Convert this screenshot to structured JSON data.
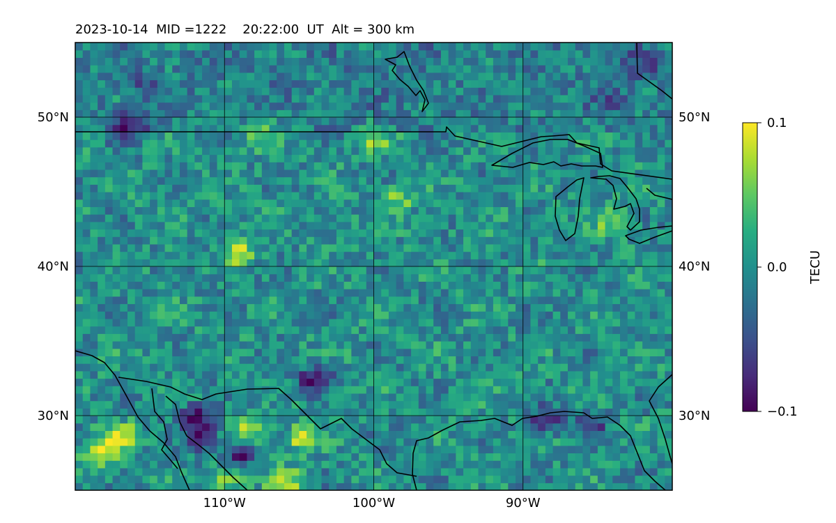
{
  "chart_data": {
    "type": "heatmap",
    "title": "2023-10-14  MID =1222    20:22:00  UT  Alt = 300 km",
    "map": {
      "lon_range": [
        -120,
        -80
      ],
      "lat_range": [
        25,
        55
      ],
      "projection": "equirectangular",
      "gridlines": true,
      "lon_ticks": [
        -110,
        -100,
        -90
      ],
      "lon_tick_labels": [
        "110°W",
        "100°W",
        "90°W"
      ],
      "lat_ticks": [
        30,
        40,
        50
      ],
      "lat_tick_labels": [
        "30°N",
        "40°N",
        "50°N"
      ],
      "coastlines_and_borders": true
    },
    "colorbar": {
      "label": "TECU",
      "colormap": "viridis",
      "vmin": -0.1,
      "vmax": 0.1,
      "ticks": [
        0.1,
        0.0,
        -0.1
      ],
      "tick_labels": [
        "0.1",
        "0.0",
        "−0.1"
      ]
    },
    "field": {
      "description_values": "differential TEC over continental US, mostly near 0.0 TECU",
      "background_level": 0.0,
      "anomalies": [
        {
          "lon": -118.5,
          "lat": 27.5,
          "value": 0.1
        },
        {
          "lon": -117.0,
          "lat": 28.5,
          "value": 0.1
        },
        {
          "lon": -106.0,
          "lat": 25.5,
          "value": 0.09
        },
        {
          "lon": -110.0,
          "lat": 25.8,
          "value": 0.08
        },
        {
          "lon": -109.0,
          "lat": 41.0,
          "value": 0.08
        },
        {
          "lon": -105.0,
          "lat": 28.5,
          "value": 0.07
        },
        {
          "lon": -108.5,
          "lat": 29.0,
          "value": 0.07
        },
        {
          "lon": -98.5,
          "lat": 44.5,
          "value": 0.06
        },
        {
          "lon": -100.0,
          "lat": 48.5,
          "value": 0.05
        },
        {
          "lon": -84.0,
          "lat": 43.0,
          "value": 0.06
        },
        {
          "lon": -107.5,
          "lat": 49.0,
          "value": 0.06
        },
        {
          "lon": -109.0,
          "lat": 27.5,
          "value": -0.1
        },
        {
          "lon": -111.5,
          "lat": 28.5,
          "value": -0.1
        },
        {
          "lon": -112.0,
          "lat": 29.8,
          "value": -0.09
        },
        {
          "lon": -116.5,
          "lat": 49.5,
          "value": -0.09
        },
        {
          "lon": -104.0,
          "lat": 32.5,
          "value": -0.09
        },
        {
          "lon": -85.5,
          "lat": 29.5,
          "value": -0.07
        },
        {
          "lon": -88.5,
          "lat": 29.8,
          "value": -0.07
        },
        {
          "lon": -115.0,
          "lat": 52.0,
          "value": -0.05
        },
        {
          "lon": -82.0,
          "lat": 53.5,
          "value": -0.05
        },
        {
          "lon": -84.0,
          "lat": 51.0,
          "value": -0.04
        }
      ]
    }
  }
}
